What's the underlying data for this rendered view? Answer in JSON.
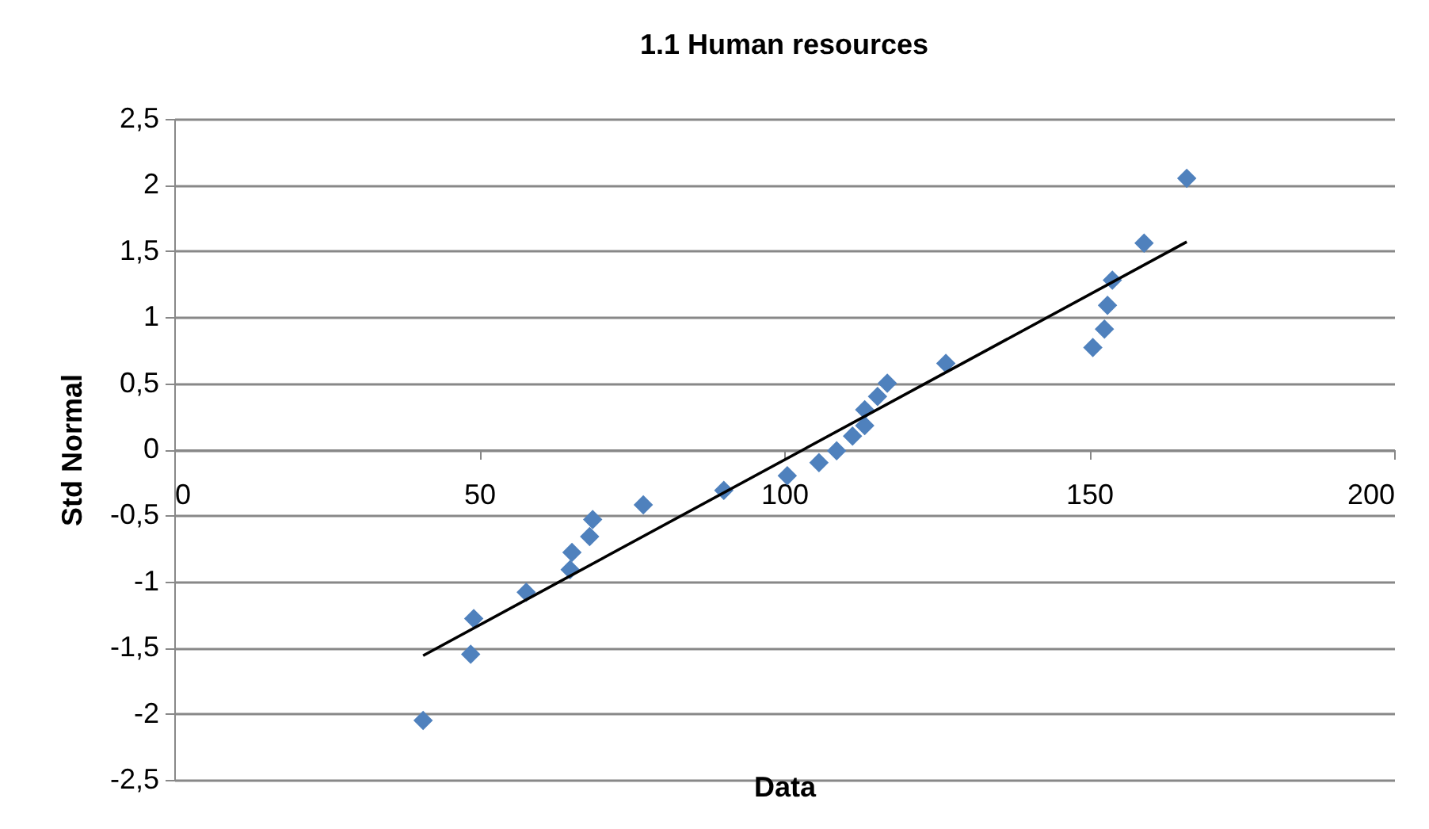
{
  "chart_data": {
    "type": "scatter",
    "title": "1.1 Human resources",
    "xlabel": "Data",
    "ylabel": "Std Normal",
    "xlim": [
      0,
      200
    ],
    "xticks": [
      0,
      50,
      100,
      150,
      200
    ],
    "ylim": [
      -2.5,
      2.5
    ],
    "yticks": [
      {
        "value": -2.5,
        "label": "-2,5"
      },
      -2,
      {
        "value": -1.5,
        "label": "-1,5"
      },
      -1,
      {
        "value": -0.5,
        "label": "-0,5"
      },
      0,
      {
        "value": 0.5,
        "label": "0,5"
      },
      1,
      {
        "value": 1.5,
        "label": "1,5"
      },
      2,
      {
        "value": 2.5,
        "label": "2,5"
      }
    ],
    "grid": "y",
    "marker": "diamond",
    "series": [
      {
        "color": "#4f81bd",
        "x": [
          40.8,
          48.6,
          49.1,
          57.7,
          64.9,
          65.2,
          68.1,
          68.6,
          76.9,
          90.1,
          100.5,
          105.7,
          108.6,
          111.2,
          113.2,
          113.2,
          115.3,
          116.9,
          126.5,
          150.6,
          152.5,
          153.0,
          153.8,
          159.0,
          166.0
        ],
        "values": [
          -2.05,
          -1.55,
          -1.28,
          -1.08,
          -0.91,
          -0.78,
          -0.66,
          -0.53,
          -0.42,
          -0.31,
          -0.2,
          -0.1,
          -0.01,
          0.1,
          0.18,
          0.3,
          0.4,
          0.5,
          0.65,
          0.77,
          0.91,
          1.09,
          1.28,
          1.56,
          2.05
        ]
      },
      {
        "type": "line",
        "color": "#000000",
        "marker": "none",
        "x": [
          40.8,
          166.0
        ],
        "values": [
          -1.56,
          1.57
        ]
      }
    ]
  }
}
